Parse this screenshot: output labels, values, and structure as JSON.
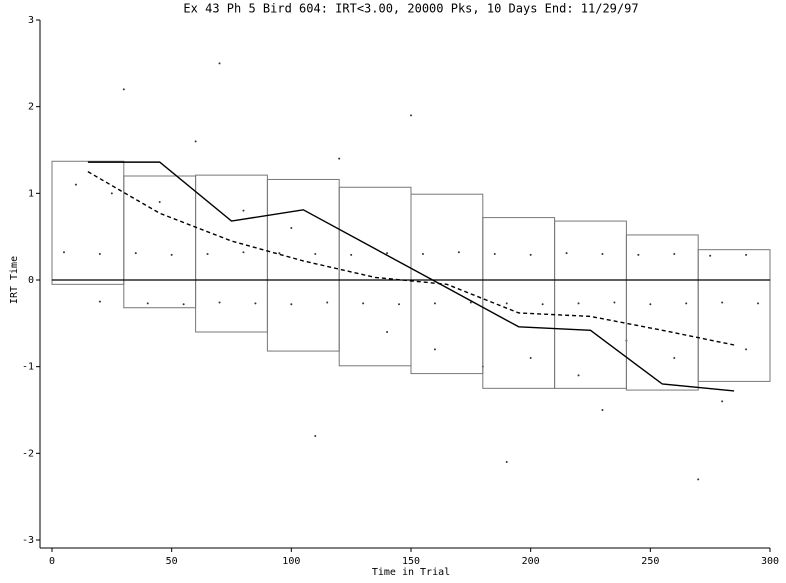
{
  "chart_data": {
    "type": "scatter",
    "title": "Ex 43 Ph 5 Bird 604: IRT<3.00, 20000 Pks, 10 Days End: 11/29/97",
    "xlabel": "Time in Trial",
    "ylabel": "IRT Time",
    "xlim": [
      0,
      300
    ],
    "ylim": [
      -3,
      3
    ],
    "xticks": [
      0,
      50,
      100,
      150,
      200,
      250,
      300
    ],
    "yticks": [
      -3,
      -2,
      -1,
      0,
      1,
      2,
      3
    ],
    "points": {
      "color": "#333333",
      "x": [
        5,
        20,
        35,
        50,
        65,
        80,
        95,
        110,
        125,
        140,
        155,
        170,
        185,
        200,
        215,
        230,
        245,
        260,
        275,
        290,
        20,
        40,
        55,
        70,
        85,
        100,
        115,
        130,
        145,
        160,
        175,
        190,
        205,
        220,
        235,
        250,
        265,
        280,
        295,
        10,
        25,
        45,
        60,
        80,
        100,
        120,
        140,
        160,
        180,
        200,
        220,
        240,
        260,
        280,
        290,
        30,
        70,
        110,
        150,
        190,
        230,
        270
      ],
      "y": [
        0.32,
        0.3,
        0.31,
        0.29,
        0.3,
        0.32,
        0.31,
        0.3,
        0.29,
        0.31,
        0.3,
        0.32,
        0.3,
        0.29,
        0.31,
        0.3,
        0.29,
        0.3,
        0.28,
        0.29,
        -0.25,
        -0.27,
        -0.28,
        -0.26,
        -0.27,
        -0.28,
        -0.26,
        -0.27,
        -0.28,
        -0.27,
        -0.26,
        -0.27,
        -0.28,
        -0.27,
        -0.26,
        -0.28,
        -0.27,
        -0.26,
        -0.27,
        1.1,
        1.0,
        0.9,
        1.6,
        0.8,
        0.6,
        1.4,
        -0.6,
        -0.8,
        -1.0,
        -0.9,
        -1.1,
        -0.7,
        -0.9,
        -1.4,
        -0.8,
        2.2,
        2.5,
        -1.8,
        1.9,
        -2.1,
        -1.5,
        -2.3
      ]
    },
    "boxes": [
      {
        "x": [
          0,
          30
        ],
        "range": [
          -0.05,
          1.37
        ]
      },
      {
        "x": [
          30,
          60
        ],
        "range": [
          -0.32,
          1.2
        ]
      },
      {
        "x": [
          60,
          90
        ],
        "range": [
          -0.6,
          1.21
        ]
      },
      {
        "x": [
          90,
          120
        ],
        "range": [
          -0.82,
          1.16
        ]
      },
      {
        "x": [
          120,
          150
        ],
        "range": [
          -0.99,
          1.07
        ]
      },
      {
        "x": [
          150,
          180
        ],
        "range": [
          -1.08,
          0.99
        ]
      },
      {
        "x": [
          180,
          210
        ],
        "range": [
          -1.25,
          0.72
        ]
      },
      {
        "x": [
          210,
          240
        ],
        "range": [
          -1.25,
          0.68
        ]
      },
      {
        "x": [
          240,
          270
        ],
        "range": [
          -1.27,
          0.52
        ]
      },
      {
        "x": [
          270,
          300
        ],
        "range": [
          -1.17,
          0.35
        ]
      }
    ],
    "lines": [
      {
        "style": "solid",
        "color": "#000000",
        "x": [
          15,
          45,
          75,
          105,
          135,
          165,
          195,
          225,
          255,
          285
        ],
        "values": [
          1.36,
          1.36,
          0.68,
          0.81,
          0.36,
          -0.09,
          -0.54,
          -0.58,
          -1.2,
          -1.28
        ]
      },
      {
        "style": "dashed",
        "color": "#000000",
        "x": [
          15,
          45,
          75,
          105,
          135,
          165,
          195,
          225,
          255,
          285
        ],
        "values": [
          1.25,
          0.77,
          0.45,
          0.22,
          0.03,
          -0.05,
          -0.38,
          -0.42,
          -0.58,
          -0.75
        ]
      }
    ],
    "zero_line": 0
  }
}
